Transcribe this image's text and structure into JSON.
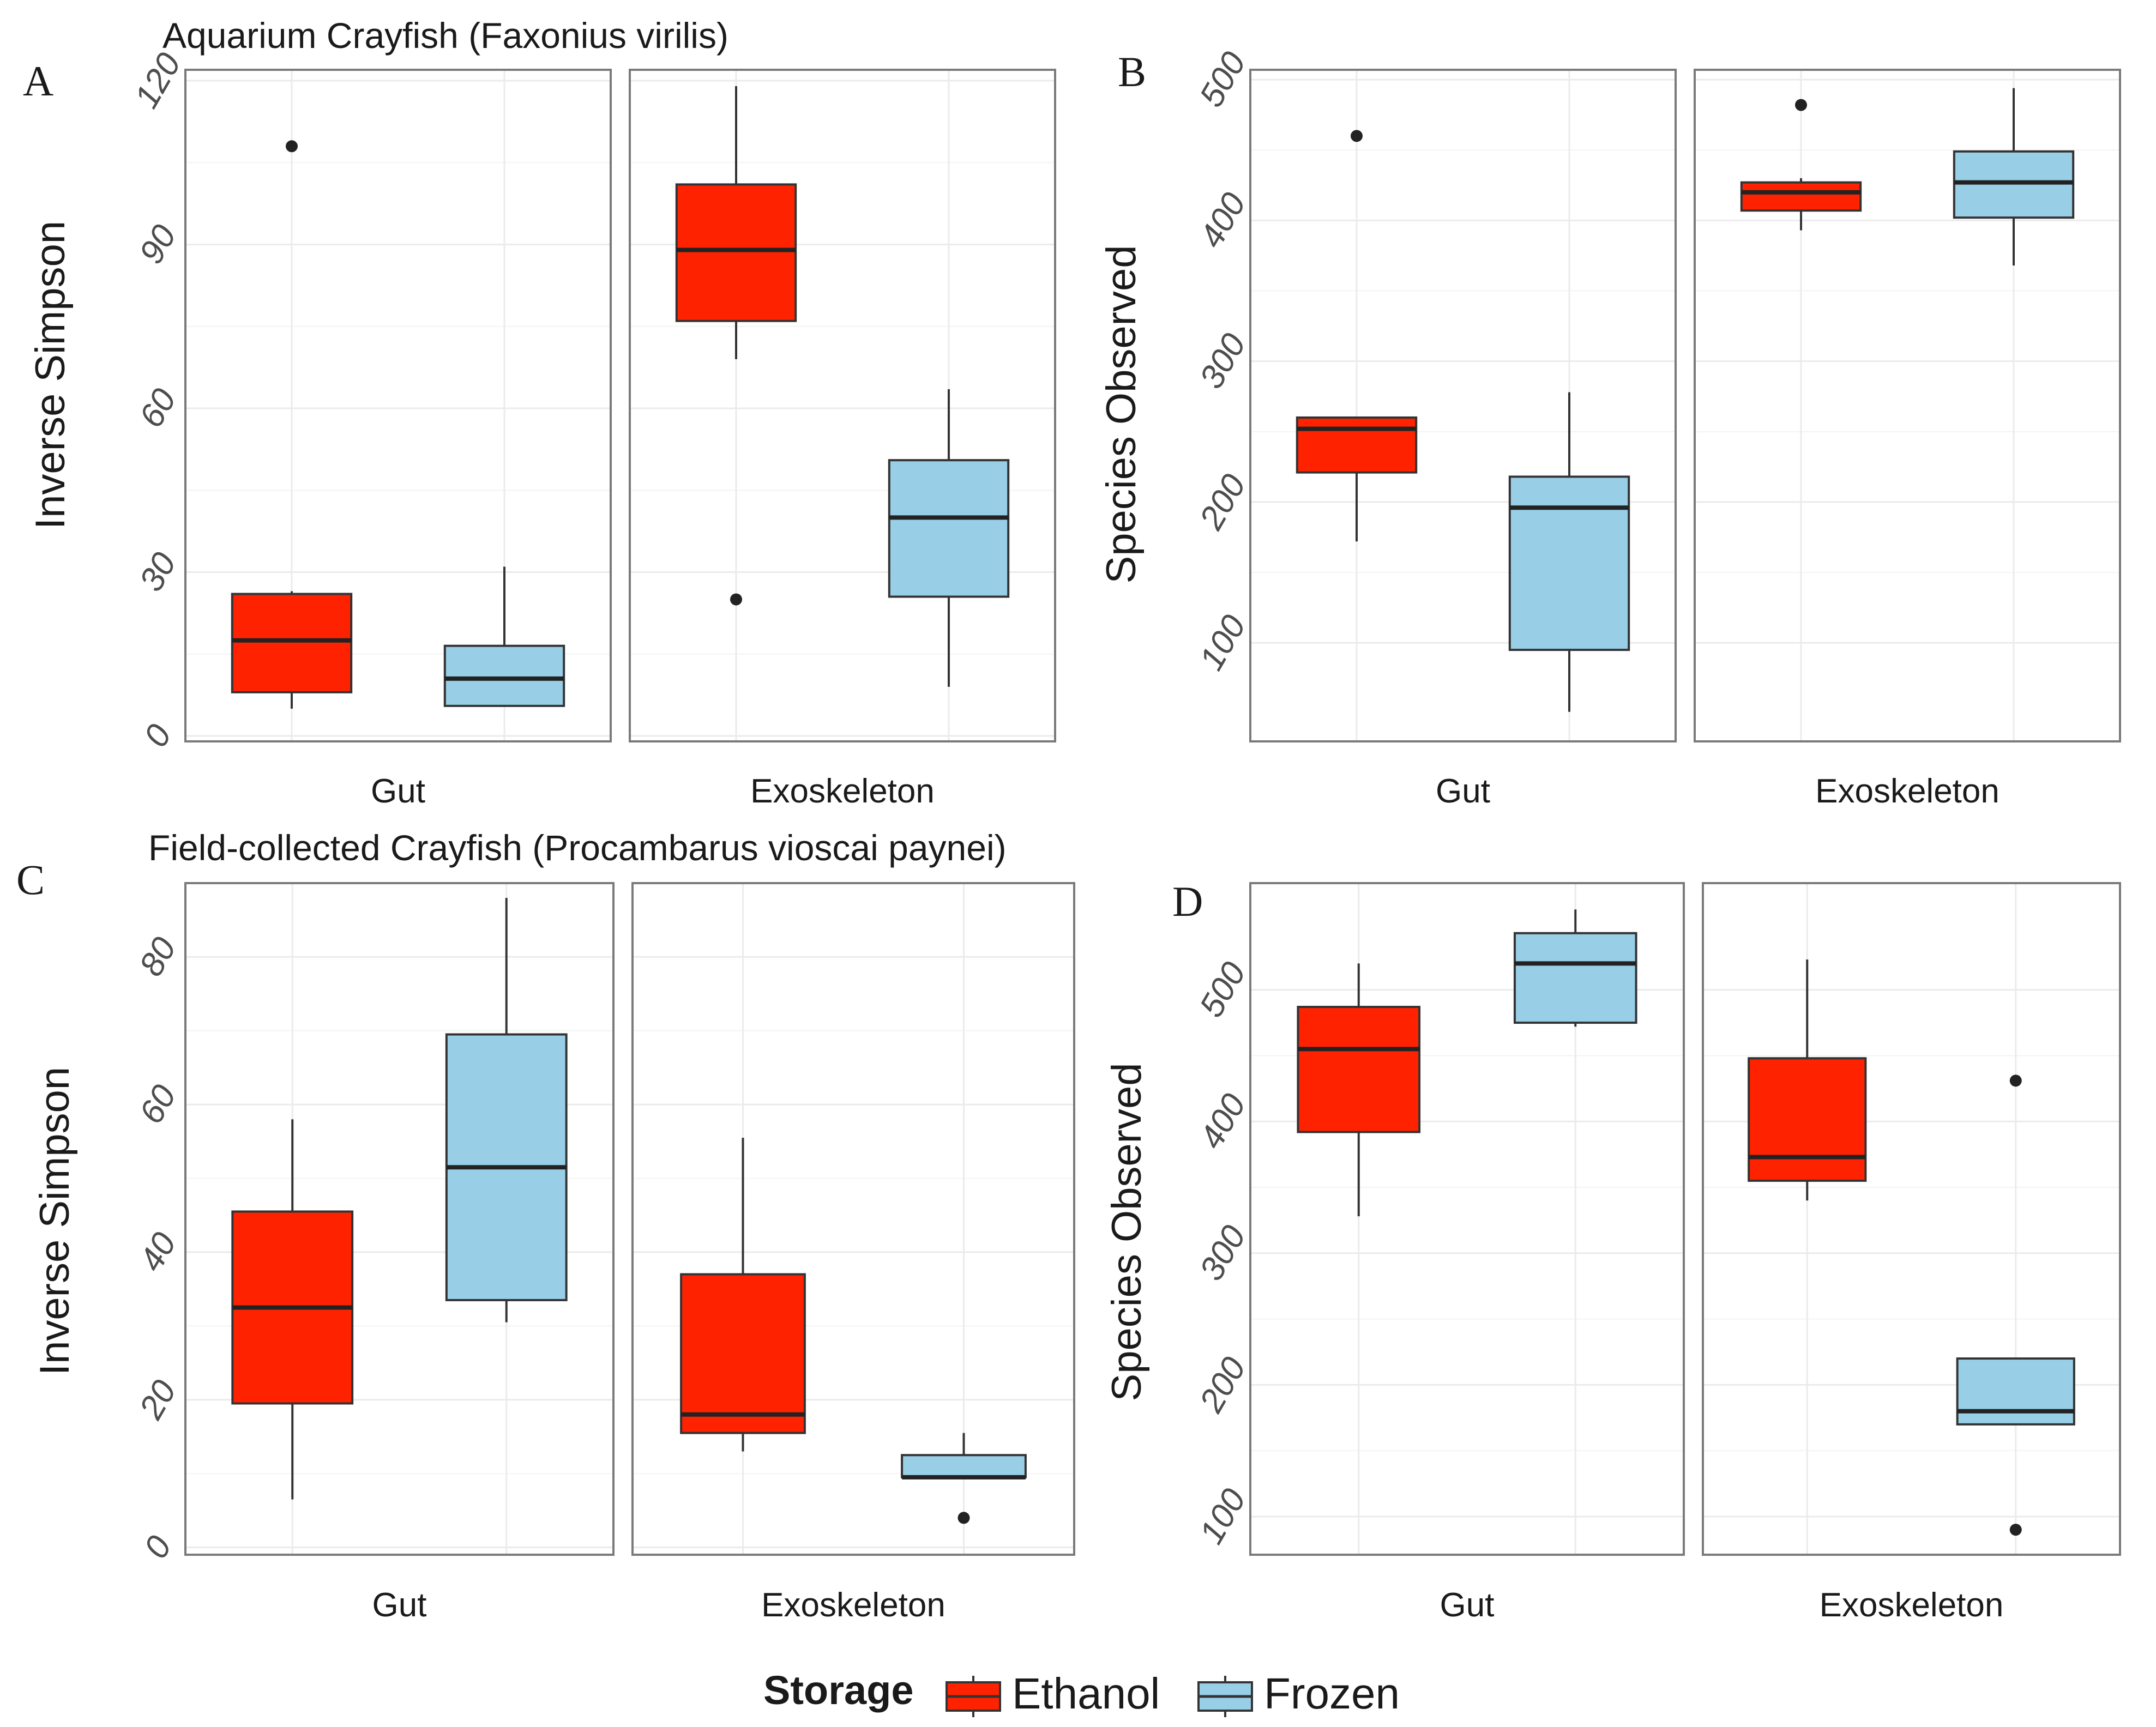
{
  "colors": {
    "ethanol": "#ff2200",
    "frozen": "#98cee6",
    "panel_border": "#7a7a7a",
    "grid": "#ebebeb",
    "text": "#1a1a1a",
    "tick_text": "#4d4d4d"
  },
  "legend": {
    "title": "Storage",
    "items": [
      {
        "label": "Ethanol",
        "color": "#ff2200"
      },
      {
        "label": "Frozen",
        "color": "#98cee6"
      }
    ]
  },
  "chart_data": [
    {
      "panel": "A",
      "type": "boxplot",
      "title": "Aquarium Crayfish (Faxonius virilis)",
      "ylabel": "Inverse Simpson",
      "ylim": [
        -1,
        122
      ],
      "yticks": [
        0,
        30,
        60,
        90,
        120
      ],
      "ytick_labels": [
        "0",
        "30",
        "60",
        "90",
        "120"
      ],
      "facets": [
        "Gut",
        "Exoskeleton"
      ],
      "grid": true,
      "boxes": [
        {
          "facet": "Gut",
          "storage": "Ethanol",
          "min": 5,
          "q1": 8,
          "median": 17.5,
          "q3": 26,
          "max": 26.5,
          "outliers": [
            108
          ]
        },
        {
          "facet": "Gut",
          "storage": "Frozen",
          "min": 5.5,
          "q1": 5.5,
          "median": 10.5,
          "q3": 16.5,
          "max": 31,
          "outliers": []
        },
        {
          "facet": "Exoskeleton",
          "storage": "Ethanol",
          "min": 69,
          "q1": 76,
          "median": 89,
          "q3": 101,
          "max": 119,
          "outliers": [
            25
          ]
        },
        {
          "facet": "Exoskeleton",
          "storage": "Frozen",
          "min": 9,
          "q1": 25.5,
          "median": 40,
          "q3": 50.5,
          "max": 63.5,
          "outliers": []
        }
      ]
    },
    {
      "panel": "B",
      "type": "boxplot",
      "title": "",
      "ylabel": "Species Observed",
      "ylim": [
        30,
        507
      ],
      "yticks": [
        100,
        200,
        300,
        400,
        500
      ],
      "ytick_labels": [
        "100",
        "200",
        "300",
        "400",
        "500"
      ],
      "facets": [
        "Gut",
        "Exoskeleton"
      ],
      "grid": true,
      "boxes": [
        {
          "facet": "Gut",
          "storage": "Ethanol",
          "min": 172,
          "q1": 221,
          "median": 252,
          "q3": 260,
          "max": 260,
          "outliers": [
            460
          ]
        },
        {
          "facet": "Gut",
          "storage": "Frozen",
          "min": 51,
          "q1": 95,
          "median": 196,
          "q3": 218,
          "max": 278,
          "outliers": []
        },
        {
          "facet": "Exoskeleton",
          "storage": "Ethanol",
          "min": 393,
          "q1": 407,
          "median": 420,
          "q3": 427,
          "max": 430,
          "outliers": [
            482
          ]
        },
        {
          "facet": "Exoskeleton",
          "storage": "Frozen",
          "min": 368,
          "q1": 402,
          "median": 427,
          "q3": 449,
          "max": 494,
          "outliers": []
        }
      ]
    },
    {
      "panel": "C",
      "type": "boxplot",
      "title": "Field-collected Crayfish (Procambarus vioscai paynei)",
      "ylabel": "Inverse Simpson",
      "ylim": [
        -1,
        90
      ],
      "yticks": [
        0,
        20,
        40,
        60,
        80
      ],
      "ytick_labels": [
        "0",
        "20",
        "40",
        "60",
        "80"
      ],
      "facets": [
        "Gut",
        "Exoskeleton"
      ],
      "grid": true,
      "boxes": [
        {
          "facet": "Gut",
          "storage": "Ethanol",
          "min": 6.5,
          "q1": 19.5,
          "median": 32.5,
          "q3": 45.5,
          "max": 58,
          "outliers": []
        },
        {
          "facet": "Gut",
          "storage": "Frozen",
          "min": 30.5,
          "q1": 33.5,
          "median": 51.5,
          "q3": 69.5,
          "max": 88,
          "outliers": []
        },
        {
          "facet": "Exoskeleton",
          "storage": "Ethanol",
          "min": 13,
          "q1": 15.5,
          "median": 18,
          "q3": 37,
          "max": 55.5,
          "outliers": []
        },
        {
          "facet": "Exoskeleton",
          "storage": "Frozen",
          "min": 9.5,
          "q1": 9.5,
          "median": 9.5,
          "q3": 12.5,
          "max": 15.5,
          "outliers": [
            4
          ]
        }
      ]
    },
    {
      "panel": "D",
      "type": "boxplot",
      "title": "",
      "ylabel": "Species Observed",
      "ylim": [
        71,
        581
      ],
      "yticks": [
        100,
        200,
        300,
        400,
        500
      ],
      "ytick_labels": [
        "100",
        "200",
        "300",
        "400",
        "500"
      ],
      "facets": [
        "Gut",
        "Exoskeleton"
      ],
      "grid": true,
      "boxes": [
        {
          "facet": "Gut",
          "storage": "Ethanol",
          "min": 328,
          "q1": 392,
          "median": 455,
          "q3": 487,
          "max": 520,
          "outliers": []
        },
        {
          "facet": "Gut",
          "storage": "Frozen",
          "min": 472,
          "q1": 475,
          "median": 520,
          "q3": 543,
          "max": 561,
          "outliers": []
        },
        {
          "facet": "Exoskeleton",
          "storage": "Ethanol",
          "min": 340,
          "q1": 355,
          "median": 373,
          "q3": 448,
          "max": 523,
          "outliers": []
        },
        {
          "facet": "Exoskeleton",
          "storage": "Frozen",
          "min": 170,
          "q1": 170,
          "median": 180,
          "q3": 220,
          "max": 220,
          "outliers": [
            431,
            90
          ]
        }
      ]
    }
  ]
}
